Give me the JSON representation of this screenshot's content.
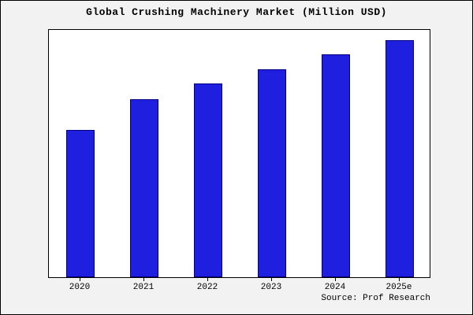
{
  "figure": {
    "title": "Global Crushing Machinery Market (Million USD)",
    "source": "Source: Prof Research",
    "background": "#f2f2f2",
    "plot_background": "#ffffff"
  },
  "chart_data": {
    "type": "bar",
    "title": "Global Crushing Machinery Market (Million USD)",
    "categories": [
      "2020",
      "2021",
      "2022",
      "2023",
      "2024",
      "2025e"
    ],
    "values": [
      187,
      226,
      246,
      264,
      283,
      301
    ],
    "xlabel": "",
    "ylabel": "",
    "ylim": [
      0,
      316
    ],
    "grid": false,
    "legend_position": "none",
    "bar_fill": "#1F1FE0",
    "bar_border": "#000080",
    "annotations": [
      "Source: Prof Research"
    ]
  }
}
